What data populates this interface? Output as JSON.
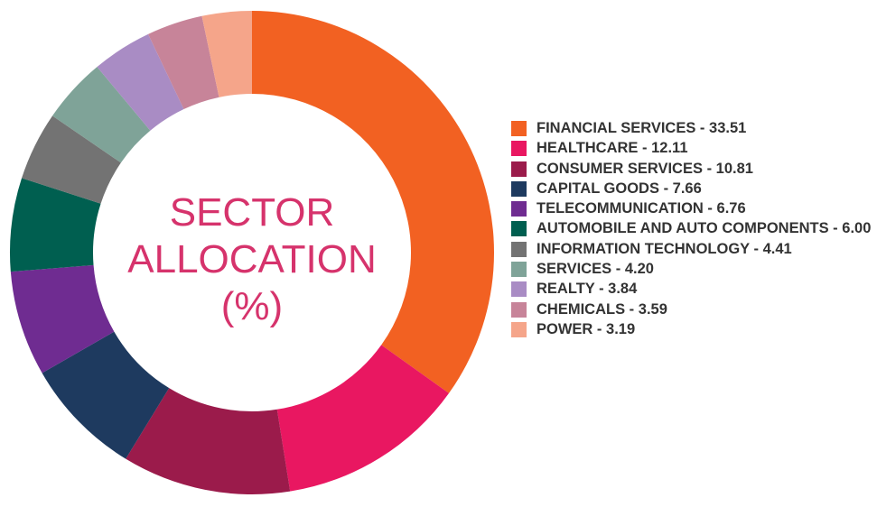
{
  "chart_data": {
    "type": "donut",
    "title": [
      "SECTOR",
      "ALLOCATION",
      "(%)"
    ],
    "categories": [
      "FINANCIAL SERVICES",
      "HEALTHCARE",
      "CONSUMER SERVICES",
      "CAPITAL GOODS",
      "TELECOMMUNICATION",
      "AUTOMOBILE AND AUTO COMPONENTS",
      "INFORMATION TECHNOLOGY",
      "SERVICES",
      "REALTY",
      "CHEMICALS",
      "POWER"
    ],
    "values": [
      33.51,
      12.11,
      10.81,
      7.66,
      6.76,
      6.0,
      4.41,
      4.2,
      3.84,
      3.59,
      3.19
    ],
    "value_labels": [
      "33.51",
      "12.11",
      "10.81",
      "7.66",
      "6.76",
      "6.00",
      "4.41",
      "4.20",
      "3.84",
      "3.59",
      "3.19"
    ],
    "colors": [
      "#f26122",
      "#e91761",
      "#9b1b4b",
      "#1e3a5f",
      "#6f2c91",
      "#005f50",
      "#737373",
      "#7fa398",
      "#a98cc4",
      "#c78499",
      "#f5a58a"
    ],
    "legend": "right"
  }
}
